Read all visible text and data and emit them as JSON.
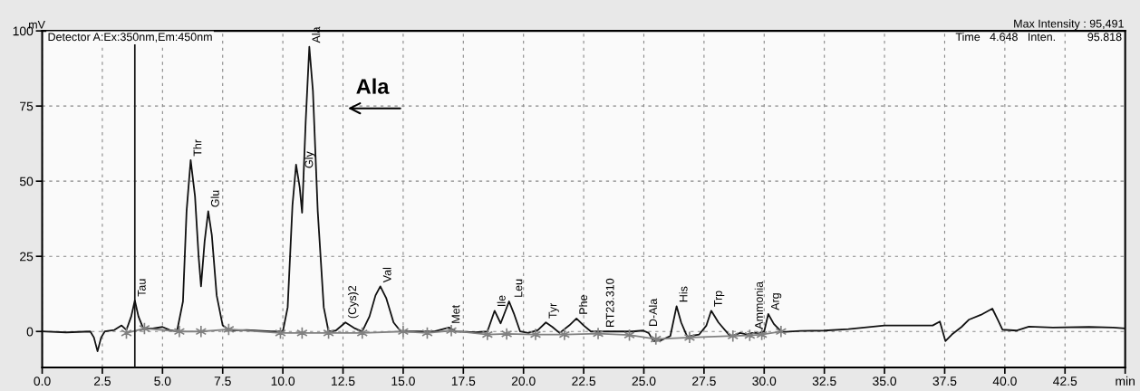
{
  "chart_data": {
    "type": "line",
    "ylabel": "mV",
    "xlim": [
      0,
      45
    ],
    "ylim": [
      -12,
      100
    ],
    "xticks": [
      {
        "value": 0,
        "label": "0.0"
      },
      {
        "value": 2.5,
        "label": "2.5"
      },
      {
        "value": 5,
        "label": "5.0"
      },
      {
        "value": 7.5,
        "label": "7.5"
      },
      {
        "value": 10,
        "label": "10.0"
      },
      {
        "value": 12.5,
        "label": "12.5"
      },
      {
        "value": 15,
        "label": "15.0"
      },
      {
        "value": 17.5,
        "label": "17.5"
      },
      {
        "value": 20,
        "label": "20.0"
      },
      {
        "value": 22.5,
        "label": "22.5"
      },
      {
        "value": 25,
        "label": "25.0"
      },
      {
        "value": 27.5,
        "label": "27.5"
      },
      {
        "value": 30,
        "label": "30.0"
      },
      {
        "value": 32.5,
        "label": "32.5"
      },
      {
        "value": 35,
        "label": "35.0"
      },
      {
        "value": 37.5,
        "label": "37.5"
      },
      {
        "value": 40,
        "label": "40.0"
      },
      {
        "value": 42.5,
        "label": "42.5"
      },
      {
        "value": 45,
        "label": "min"
      }
    ],
    "yticks": [
      0,
      25,
      50,
      75,
      100
    ],
    "grid": true,
    "series": [
      {
        "color": "#111111",
        "line_style": "solid",
        "marker": "none",
        "x": [
          0,
          1.0,
          2.0,
          2.15,
          2.3,
          2.45,
          2.6,
          3.0,
          3.3,
          3.5,
          3.7,
          3.85,
          4.0,
          4.2,
          4.6,
          5.0,
          5.3,
          5.6,
          5.85,
          6.0,
          6.17,
          6.35,
          6.5,
          6.6,
          6.75,
          6.9,
          7.05,
          7.25,
          7.5,
          7.8,
          8.5,
          9.5,
          10.0,
          10.2,
          10.4,
          10.55,
          10.7,
          10.8,
          10.95,
          11.1,
          11.25,
          11.45,
          11.7,
          11.9,
          12.2,
          12.6,
          13.0,
          13.3,
          13.6,
          13.85,
          14.05,
          14.3,
          14.6,
          14.9,
          15.5,
          16.3,
          16.9,
          17.2,
          18.0,
          18.5,
          18.8,
          19.05,
          19.4,
          19.6,
          19.86,
          20.2,
          20.6,
          20.93,
          21.2,
          21.5,
          21.9,
          22.2,
          22.5,
          22.8,
          23.5,
          24.5,
          24.97,
          25.2,
          25.4,
          25.7,
          26.1,
          26.36,
          26.55,
          26.8,
          27.3,
          27.6,
          27.8,
          28.1,
          28.6,
          29.0,
          29.3,
          29.5,
          29.8,
          30.0,
          30.17,
          30.4,
          30.73,
          31.5,
          32.5,
          33.5,
          35.0,
          36.0,
          37.0,
          37.3,
          37.53,
          37.8,
          38.2,
          38.5,
          39.0,
          39.48,
          39.7,
          39.9,
          40.5,
          41.0,
          42.0,
          43.5,
          44.5,
          45.0
        ],
        "values": [
          0,
          -0.3,
          0,
          -2,
          -6.6,
          -2,
          0,
          0.5,
          2,
          0.5,
          5,
          10.3,
          5,
          1,
          1,
          1.5,
          0.5,
          0,
          10,
          40,
          57,
          45,
          25,
          15,
          30,
          40,
          32,
          12,
          2,
          0.3,
          0.5,
          0,
          0,
          8,
          42,
          55.5,
          48,
          39.5,
          70,
          94.7,
          80,
          40,
          8,
          0,
          0.3,
          3,
          1,
          0,
          5,
          12,
          15,
          11,
          3,
          0,
          0,
          0,
          1.3,
          0,
          -0.3,
          0,
          6.9,
          2.7,
          10,
          6,
          0,
          -0.5,
          0.5,
          3,
          1.5,
          -0.5,
          2,
          4.3,
          2,
          0,
          0,
          0,
          0.3,
          -0.5,
          -3.2,
          -3,
          -1.5,
          8.4,
          3,
          -1.7,
          -1,
          2,
          6.9,
          3,
          -1.7,
          -0.5,
          -1,
          -0.5,
          -0.5,
          0,
          5.8,
          2.5,
          -0.2,
          0.2,
          0.3,
          0.8,
          2,
          2,
          2,
          3.3,
          -3.2,
          -1,
          1.5,
          3.9,
          5.5,
          7.6,
          4,
          0.6,
          0.3,
          1.6,
          1.3,
          1.5,
          1.3,
          1.0
        ]
      },
      {
        "color": "#808080",
        "line_style": "solid",
        "marker": "cross",
        "x": [
          3.5,
          4.25,
          5.7,
          6.6,
          7.75,
          9.9,
          10.8,
          11.9,
          13.3,
          15.0,
          16.0,
          17.0,
          18.5,
          19.3,
          20.5,
          21.7,
          23.1,
          24.4,
          25.5,
          26.9,
          28.7,
          29.4,
          29.9,
          30.7
        ],
        "values": [
          -0.5,
          1.0,
          0,
          0,
          0.7,
          -0.5,
          -0.5,
          -0.5,
          -0.5,
          0,
          -0.5,
          0.3,
          -1,
          -0.8,
          -1,
          -1,
          -0.7,
          -1.2,
          -2.5,
          -2,
          -1.5,
          -1.3,
          -1,
          0
        ]
      }
    ],
    "ref_lines": [
      {
        "axis": "x",
        "value": 3.85,
        "color": "#111111",
        "line_style": "solid"
      }
    ],
    "annotations": [
      {
        "text": "Tau",
        "x": 3.85,
        "y": 10.3
      },
      {
        "text": "Thr",
        "x": 6.17,
        "y": 57
      },
      {
        "text": "Glu",
        "x": 6.9,
        "y": 40
      },
      {
        "text": "Gly",
        "x": 10.8,
        "y": 53
      },
      {
        "text": "Ala",
        "x": 11.1,
        "y": 94.7
      },
      {
        "text": "(Cys)2",
        "x": 12.6,
        "y": 3
      },
      {
        "text": "Val",
        "x": 14.05,
        "y": 15
      },
      {
        "text": "Met",
        "x": 16.9,
        "y": 1.3
      },
      {
        "text": "Ile",
        "x": 18.8,
        "y": 6.9
      },
      {
        "text": "Leu",
        "x": 19.5,
        "y": 10
      },
      {
        "text": "Tyr",
        "x": 20.93,
        "y": 3
      },
      {
        "text": "Phe",
        "x": 22.2,
        "y": 4.3
      },
      {
        "text": "RT23.310",
        "x": 23.31,
        "y": 0
      },
      {
        "text": "D-Ala",
        "x": 25.1,
        "y": 0.3
      },
      {
        "text": "His",
        "x": 26.36,
        "y": 8.4
      },
      {
        "text": "Trp",
        "x": 27.8,
        "y": 6.9
      },
      {
        "text": "Ammonia",
        "x": 29.5,
        "y": -0.5
      },
      {
        "text": "Arg",
        "x": 30.17,
        "y": 5.8
      },
      "Detector A:Ex:350nm,Em:450nm",
      "Max Intensity : 95,491",
      "Time   4.648   Inten.          95.818",
      "Ala"
    ]
  }
}
